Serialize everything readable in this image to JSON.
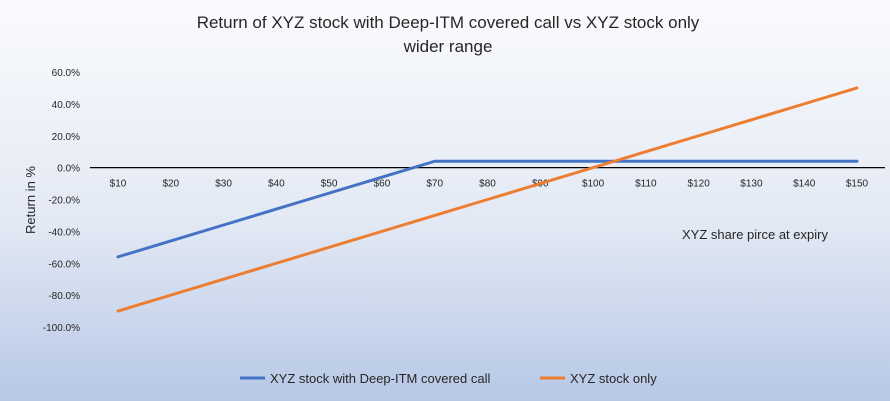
{
  "chart_data": {
    "type": "line",
    "title": "Return of XYZ stock with Deep-ITM covered call vs XYZ stock only",
    "subtitle": "wider range",
    "ylabel": "Return in %",
    "annotation": "XYZ share pirce at expiry",
    "x": [
      "$10",
      "$20",
      "$30",
      "$40",
      "$50",
      "$60",
      "$70",
      "$80",
      "$90",
      "$100",
      "$110",
      "$120",
      "$130",
      "$140",
      "$150"
    ],
    "x_values": [
      10,
      20,
      30,
      40,
      50,
      60,
      70,
      80,
      90,
      100,
      110,
      120,
      130,
      140,
      150
    ],
    "ylim": [
      -100,
      60
    ],
    "yticks": [
      60,
      40,
      20,
      0,
      -20,
      -40,
      -60,
      -80,
      -100
    ],
    "ytick_labels": [
      "60.0%",
      "40.0%",
      "20.0%",
      "0.0%",
      "-20.0%",
      "-40.0%",
      "-60.0%",
      "-80.0%",
      "-100.0%"
    ],
    "grid": false,
    "legend": "bottom",
    "series": [
      {
        "name": "XYZ stock with Deep-ITM covered call",
        "color": "#4472c4",
        "values": [
          -56,
          -46,
          -36,
          -26,
          -16,
          -6,
          4,
          4,
          4,
          4,
          4,
          4,
          4,
          4,
          4
        ]
      },
      {
        "name": "XYZ stock only",
        "color": "#ed7d31",
        "values": [
          -90,
          -80,
          -70,
          -60,
          -50,
          -40,
          -30,
          -20,
          -10,
          0,
          10,
          20,
          30,
          40,
          50
        ]
      }
    ]
  }
}
